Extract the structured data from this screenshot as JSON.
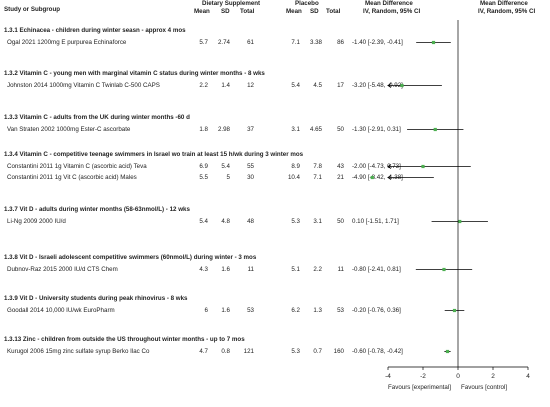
{
  "header": {
    "col_study": "Study or Subgroup",
    "group1": "Dietary Supplement",
    "group2": "Placebo",
    "md_title": "Mean Difference",
    "md_sub": "IV, Random, 95% CI",
    "md_title2": "Mean Difference",
    "md_sub2": "IV, Random, 95% CI",
    "mean": "Mean",
    "sd": "SD",
    "total": "Total"
  },
  "axis": {
    "ticks": [
      "-4",
      "-2",
      "0",
      "2",
      "4"
    ],
    "left_label": "Favours [experimental]",
    "right_label": "Favours [control]"
  },
  "colors": {
    "marker": "#4caf50",
    "line": "#000000"
  },
  "chart_data": {
    "type": "forest",
    "xlim": [
      -4,
      4
    ],
    "groups": [
      {
        "title": "1.3.1 Echinacea - children during winter seasn - approx 4 mos",
        "studies": [
          {
            "name": "Ogal 2021 1200mg E purpurea Echinaforce",
            "m1": "5.7",
            "sd1": "2.74",
            "n1": "61",
            "m2": "7.1",
            "sd2": "3.38",
            "n2": "86",
            "ci_text": "-1.40 [-2.39, -0.41]",
            "md": -1.4,
            "lo": -2.39,
            "hi": -0.41
          }
        ]
      },
      {
        "title": "1.3.2 Vitamin C - young men with marginal vitamin C status during winter months - 8 wks",
        "studies": [
          {
            "name": "Johnston 2014 1000mg Vitamin C Twinlab C-500 CAPS",
            "m1": "2.2",
            "sd1": "1.4",
            "n1": "12",
            "m2": "5.4",
            "sd2": "4.5",
            "n2": "17",
            "ci_text": "-3.20 [-5.48, -0.92]",
            "md": -3.2,
            "lo": -5.48,
            "hi": -0.92
          }
        ]
      },
      {
        "title": "1.3.3 Vitamin C - adults from the UK during winter months -60 d",
        "studies": [
          {
            "name": "Van Straten 2002 1000mg Ester-C ascorbate",
            "m1": "1.8",
            "sd1": "2.98",
            "n1": "37",
            "m2": "3.1",
            "sd2": "4.65",
            "n2": "50",
            "ci_text": "-1.30 [-2.91, 0.31]",
            "md": -1.3,
            "lo": -2.91,
            "hi": 0.31
          }
        ]
      },
      {
        "title": "1.3.4 Vitamin C - competitive teenage swimmers in Israel wo train at least 15 h/wk during 3 winter mos",
        "studies": [
          {
            "name": "Constantini 2011 1g Vitamin C (ascorbic acid) Teva",
            "m1": "6.9",
            "sd1": "5.4",
            "n1": "55",
            "m2": "8.9",
            "sd2": "7.8",
            "n2": "43",
            "ci_text": "-2.00 [-4.73, 0.73]",
            "md": -2.0,
            "lo": -4.73,
            "hi": 0.73
          },
          {
            "name": "Constantini 2011 1g Vit C (ascorbic acid) Males",
            "m1": "5.5",
            "sd1": "5",
            "n1": "30",
            "m2": "10.4",
            "sd2": "7.1",
            "n2": "21",
            "ci_text": "-4.90 [-8.42, -1.38]",
            "md": -4.9,
            "lo": -8.42,
            "hi": -1.38
          }
        ]
      },
      {
        "title": "1.3.7 Vit D - adults during winter months (58-63nmol/L) - 12 wks",
        "studies": [
          {
            "name": "Li-Ng 2009 2000 IU/d",
            "m1": "5.4",
            "sd1": "4.8",
            "n1": "48",
            "m2": "5.3",
            "sd2": "3.1",
            "n2": "50",
            "ci_text": "0.10 [-1.51, 1.71]",
            "md": 0.1,
            "lo": -1.51,
            "hi": 1.71
          }
        ]
      },
      {
        "title": "1.3.8 Vit D - Israeli adolescent competitive swimmers (60nmol/L) during winter - 3 mos",
        "studies": [
          {
            "name": "Dubnov-Raz 2015 2000 IU/d CTS Chem",
            "m1": "4.3",
            "sd1": "1.6",
            "n1": "11",
            "m2": "5.1",
            "sd2": "2.2",
            "n2": "11",
            "ci_text": "-0.80 [-2.41, 0.81]",
            "md": -0.8,
            "lo": -2.41,
            "hi": 0.81
          }
        ]
      },
      {
        "title": "1.3.9 Vit D - University students during peak rhinovirus - 8 wks",
        "studies": [
          {
            "name": "Goodall 2014 10,000 IU/wk EuroPharm",
            "m1": "6",
            "sd1": "1.6",
            "n1": "53",
            "m2": "6.2",
            "sd2": "1.3",
            "n2": "53",
            "ci_text": "-0.20 [-0.76, 0.36]",
            "md": -0.2,
            "lo": -0.76,
            "hi": 0.36
          }
        ]
      },
      {
        "title": "1.3.13 Zinc - children from outside the US throughout winter months - up to 7 mos",
        "studies": [
          {
            "name": "Kurugol 2006 15mg zinc sulfate syrup Berko Ilac Co",
            "m1": "4.7",
            "sd1": "0.8",
            "n1": "121",
            "m2": "5.3",
            "sd2": "0.7",
            "n2": "160",
            "ci_text": "-0.60 [-0.78, -0.42]",
            "md": -0.6,
            "lo": -0.78,
            "hi": -0.42
          }
        ]
      }
    ]
  }
}
